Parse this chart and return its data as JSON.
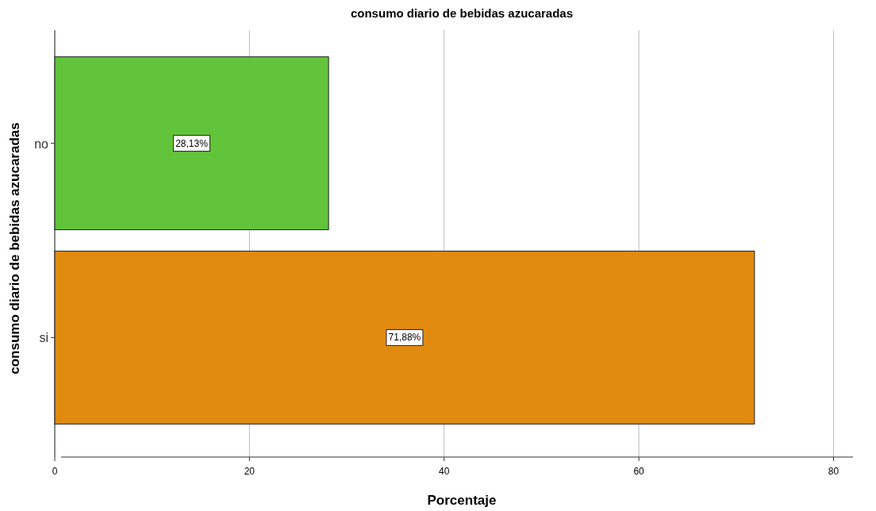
{
  "chart_data": {
    "type": "bar",
    "orientation": "horizontal",
    "title": "consumo diario de bebidas azucaradas",
    "xlabel": "Porcentaje",
    "ylabel": "consumo diario de bebidas azucaradas",
    "categories": [
      "no",
      "si"
    ],
    "values": [
      28.13,
      71.88
    ],
    "colors": [
      "#62c43a",
      "#e08a10"
    ],
    "value_labels": [
      "28,13%",
      "71,88%"
    ],
    "xlim": [
      0,
      82
    ],
    "xticks": [
      0,
      20,
      40,
      60,
      80
    ],
    "grid": "x"
  }
}
